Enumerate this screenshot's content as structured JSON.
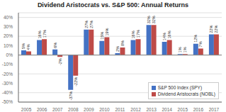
{
  "chart_data": {
    "type": "bar",
    "title": "Dividend Aristocrats vs. S&P 500: Annual Returns",
    "categories": [
      "2005",
      "2006",
      "2007",
      "2008",
      "2009",
      "2010",
      "2011",
      "2012",
      "2013",
      "2014",
      "2015",
      "2016",
      "2017"
    ],
    "series": [
      {
        "name": "S&P 500 Index (SPY)",
        "color": "#4472C4",
        "values": [
          5,
          16,
          6,
          -37,
          27,
          15,
          2,
          16,
          32,
          14,
          1,
          12,
          22
        ],
        "value_labels": [
          "5%",
          "16%",
          "6%",
          "-37%",
          "27%",
          "15%",
          "2%",
          "16%",
          "32%",
          "14%",
          "1%",
          "12%",
          "22%"
        ]
      },
      {
        "name": "Dividend Aristocrats (NOBL)",
        "color": "#BE4B48",
        "values": [
          4,
          17,
          -2,
          -22,
          27,
          19,
          8,
          17,
          32,
          16,
          1,
          7,
          22
        ],
        "value_labels": [
          "4%",
          "17%",
          "-2%",
          "-22%",
          "27%",
          "19%",
          "8%",
          "17%",
          "32%",
          "16%",
          "1%",
          "7%",
          "22%"
        ]
      }
    ],
    "ylim": [
      -50,
      45
    ],
    "yticks": [
      {
        "value": -50,
        "label": "-50%"
      },
      {
        "value": -40,
        "label": "-40%"
      },
      {
        "value": -30,
        "label": "-30%"
      },
      {
        "value": -20,
        "label": "-20%"
      },
      {
        "value": -10,
        "label": "-10%"
      },
      {
        "value": 0,
        "label": "0%"
      },
      {
        "value": 10,
        "label": "10%"
      },
      {
        "value": 20,
        "label": "20%"
      },
      {
        "value": 30,
        "label": "30%"
      },
      {
        "value": 40,
        "label": "40%"
      }
    ],
    "grid": true,
    "legend": "lower right",
    "data_labels": true
  }
}
